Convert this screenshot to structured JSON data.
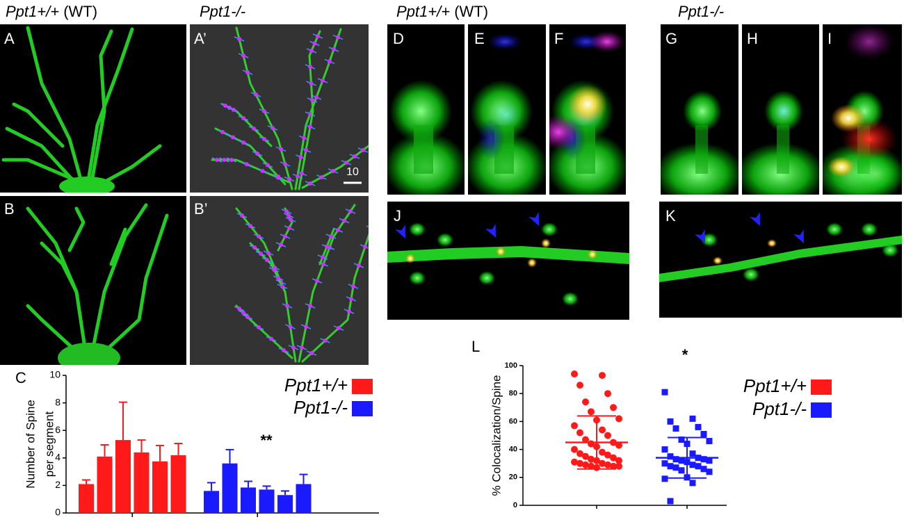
{
  "headings": [
    {
      "gene": "Ppt1+/+",
      "note": "(WT)"
    },
    {
      "gene": "Ppt1-/-"
    },
    {
      "gene": "Ppt1+/+",
      "note": "(WT)"
    },
    {
      "gene": "Ppt1-/-"
    }
  ],
  "panels": [
    "A",
    "A’",
    "B",
    "B’",
    "D",
    "E",
    "F",
    "G",
    "H",
    "I",
    "J",
    "K"
  ],
  "scale_bar": "10",
  "chart_data": [
    {
      "type": "bar",
      "panel": "C",
      "y_label": [
        "Number of Spine",
        "per segment"
      ],
      "ylim": [
        0,
        10
      ],
      "yticks": [
        0,
        2,
        4,
        6,
        8,
        10
      ],
      "annotation": "**",
      "legend": "top-right",
      "series": [
        {
          "name": "Ppt1+/+",
          "color": "#ff1a1a",
          "values": [
            2.1,
            4.1,
            5.3,
            4.4,
            3.75,
            4.2
          ],
          "errors": [
            0.3,
            0.85,
            2.75,
            0.9,
            1.15,
            0.85
          ]
        },
        {
          "name": "Ppt1-/-",
          "color": "#1a1aff",
          "values": [
            1.6,
            3.6,
            1.85,
            1.7,
            1.3,
            2.1
          ],
          "errors": [
            0.6,
            1.0,
            0.45,
            0.25,
            0.3,
            0.7
          ]
        }
      ]
    },
    {
      "type": "scatter",
      "panel": "L",
      "y_label": "% Colocalization/Spine",
      "ylim": [
        0,
        100
      ],
      "yticks": [
        0,
        20,
        40,
        60,
        80,
        100
      ],
      "annotation": "*",
      "legend": "right",
      "series": [
        {
          "name": "Ppt1+/+",
          "color": "#ff1a1a",
          "marker": "circle",
          "mean": 45,
          "sd": 19,
          "values": [
            94,
            93,
            86,
            80,
            74,
            70,
            67,
            62,
            61,
            57,
            54,
            52,
            50,
            47,
            45,
            44,
            43,
            42,
            40,
            38,
            37,
            36,
            35,
            34,
            33,
            32,
            32,
            31,
            30,
            30,
            29,
            29,
            28,
            28,
            28,
            27
          ]
        },
        {
          "name": "Ppt1-/-",
          "color": "#1a1aff",
          "marker": "square",
          "mean": 34,
          "sd": 14.5,
          "values": [
            81,
            62,
            60,
            56,
            55,
            51,
            47,
            46,
            44,
            40,
            37,
            35,
            34,
            33,
            33,
            32,
            32,
            31,
            30,
            29,
            28,
            28,
            27,
            26,
            25,
            24,
            20,
            19,
            16,
            3
          ]
        }
      ]
    }
  ]
}
